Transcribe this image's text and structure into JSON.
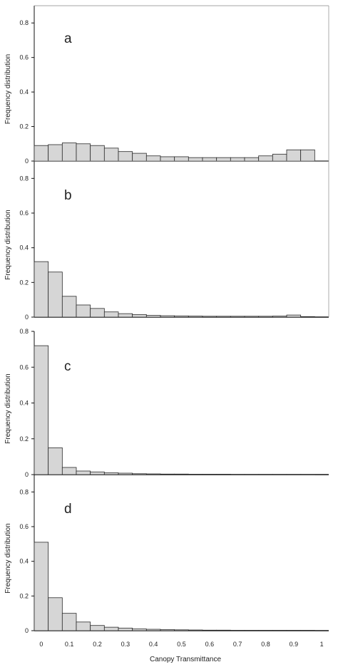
{
  "chart_data": [
    {
      "type": "bar",
      "panel_label": "a",
      "ylabel": "Frequency distribution",
      "ylim": [
        0,
        0.9
      ],
      "yticks": [
        0,
        0.2,
        0.4,
        0.6,
        0.8
      ],
      "xlim": [
        -0.025,
        1.025
      ],
      "bin_width": 0.05,
      "x": [
        0,
        0.05,
        0.1,
        0.15,
        0.2,
        0.25,
        0.3,
        0.35,
        0.4,
        0.45,
        0.5,
        0.55,
        0.6,
        0.65,
        0.7,
        0.75,
        0.8,
        0.85,
        0.9,
        0.95
      ],
      "values": [
        0.09,
        0.095,
        0.105,
        0.1,
        0.09,
        0.075,
        0.055,
        0.045,
        0.03,
        0.025,
        0.025,
        0.02,
        0.02,
        0.02,
        0.02,
        0.02,
        0.03,
        0.04,
        0.065,
        0.065
      ]
    },
    {
      "type": "bar",
      "panel_label": "b",
      "ylabel": "Frequency distribution",
      "ylim": [
        0,
        0.9
      ],
      "yticks": [
        0,
        0.2,
        0.4,
        0.6,
        0.8
      ],
      "xlim": [
        -0.025,
        1.025
      ],
      "bin_width": 0.05,
      "x": [
        0,
        0.05,
        0.1,
        0.15,
        0.2,
        0.25,
        0.3,
        0.35,
        0.4,
        0.45,
        0.5,
        0.55,
        0.6,
        0.65,
        0.7,
        0.75,
        0.8,
        0.85,
        0.9,
        0.95
      ],
      "values": [
        0.32,
        0.26,
        0.12,
        0.07,
        0.05,
        0.03,
        0.02,
        0.015,
        0.01,
        0.008,
        0.007,
        0.006,
        0.005,
        0.005,
        0.005,
        0.005,
        0.005,
        0.006,
        0.012,
        0.003
      ]
    },
    {
      "type": "bar",
      "panel_label": "c",
      "ylabel": "Frequency distribution",
      "ylim": [
        0,
        0.8
      ],
      "yticks": [
        0,
        0.2,
        0.4,
        0.6,
        0.8
      ],
      "xlim": [
        -0.025,
        1.025
      ],
      "bin_width": 0.05,
      "x": [
        0,
        0.05,
        0.1,
        0.15,
        0.2,
        0.25,
        0.3,
        0.35,
        0.4,
        0.45,
        0.5,
        0.55,
        0.6,
        0.65,
        0.7,
        0.75,
        0.8,
        0.85,
        0.9,
        0.95
      ],
      "values": [
        0.72,
        0.15,
        0.04,
        0.02,
        0.015,
        0.01,
        0.008,
        0.005,
        0.004,
        0.003,
        0.003,
        0.002,
        0.002,
        0.002,
        0.001,
        0.001,
        0.001,
        0.001,
        0.001,
        0.001
      ]
    },
    {
      "type": "bar",
      "panel_label": "d",
      "ylabel": "Frequency distribution",
      "xlabel": "Canopy Transmittance",
      "ylim": [
        0,
        0.9
      ],
      "yticks": [
        0,
        0.2,
        0.4,
        0.6,
        0.8
      ],
      "xlim": [
        -0.025,
        1.025
      ],
      "xticks": [
        "0",
        "0.1",
        "0.2",
        "0.3",
        "0.4",
        "0.5",
        "0.6",
        "0.7",
        "0.8",
        "0.9",
        "1"
      ],
      "bin_width": 0.05,
      "x": [
        0,
        0.05,
        0.1,
        0.15,
        0.2,
        0.25,
        0.3,
        0.35,
        0.4,
        0.45,
        0.5,
        0.55,
        0.6,
        0.65,
        0.7,
        0.75,
        0.8,
        0.85,
        0.9,
        0.95
      ],
      "values": [
        0.51,
        0.19,
        0.1,
        0.05,
        0.03,
        0.02,
        0.015,
        0.01,
        0.008,
        0.006,
        0.005,
        0.004,
        0.003,
        0.003,
        0.002,
        0.002,
        0.002,
        0.002,
        0.002,
        0.002
      ]
    }
  ],
  "colors": {
    "bar_fill": "#d6d6d6",
    "bar_stroke": "#2a2a2a",
    "axis": "#111111"
  }
}
